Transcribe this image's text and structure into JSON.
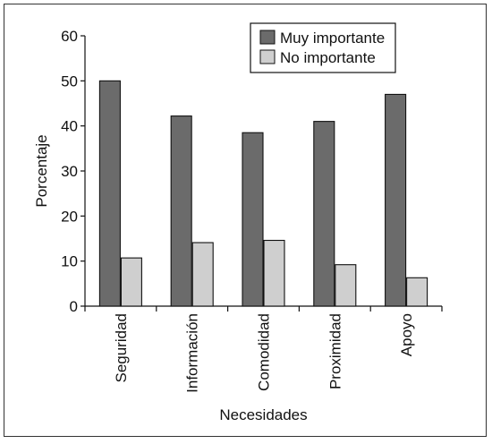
{
  "chart_data": {
    "type": "bar",
    "title": "",
    "xlabel": "Necesidades",
    "ylabel": "Porcentaje",
    "ylim": [
      0,
      60
    ],
    "yticks": [
      0,
      10,
      20,
      30,
      40,
      50,
      60
    ],
    "grid": false,
    "legend_position": "top-right",
    "categories": [
      "Seguridad",
      "Información",
      "Comodidad",
      "Proximidad",
      "Apoyo"
    ],
    "series": [
      {
        "name": "Muy importante",
        "color": "#6b6b6b",
        "values": [
          50,
          42.2,
          38.5,
          41,
          47
        ]
      },
      {
        "name": "No importante",
        "color": "#cfcfcf",
        "values": [
          10.7,
          14.1,
          14.6,
          9.2,
          6.3
        ]
      }
    ]
  }
}
